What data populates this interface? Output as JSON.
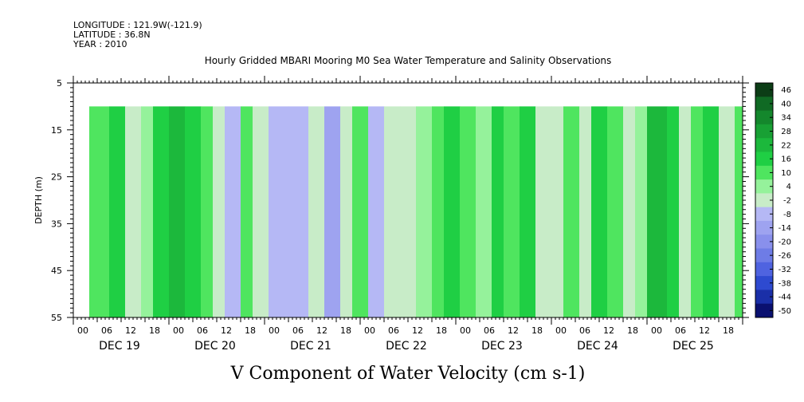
{
  "header": {
    "longitude": "LONGITUDE : 121.9W(-121.9)",
    "latitude": "LATITUDE : 36.8N",
    "year": "YEAR : 2010"
  },
  "chart_data": {
    "type": "heatmap",
    "title": "Hourly Gridded MBARI Mooring M0 Sea Water Temperature and Salinity Observations",
    "xlabel": "V Component of Water Velocity (cm s-1)",
    "ylabel": "DEPTH (m)",
    "ylim": [
      55,
      5
    ],
    "y_ticks": [
      "5",
      "15",
      "25",
      "35",
      "45",
      "55"
    ],
    "x_hour_ticks": [
      "00",
      "06",
      "12",
      "18",
      "00",
      "06",
      "12",
      "18",
      "00",
      "06",
      "12",
      "18",
      "00",
      "06",
      "12",
      "18",
      "00",
      "06",
      "12",
      "18",
      "00",
      "06",
      "12",
      "18",
      "00",
      "06",
      "12",
      "18"
    ],
    "x_day_labels": [
      "DEC 19",
      "DEC 20",
      "DEC 21",
      "DEC 22",
      "DEC 23",
      "DEC 24",
      "DEC 25"
    ],
    "data_start": "DEC 19 04:00",
    "data_end": "DEC 25 23:00",
    "data_top_depth": 10,
    "colorbar_levels": [
      "46",
      "40",
      "34",
      "28",
      "22",
      "16",
      "10",
      "4",
      "-2",
      "-8",
      "-14",
      "-20",
      "-26",
      "-32",
      "-38",
      "-44",
      "-50"
    ],
    "colorbar_colors": [
      "#0c3d16",
      "#106a24",
      "#14872c",
      "#18a034",
      "#1cb83c",
      "#1fcf44",
      "#4fe55f",
      "#95f29b",
      "#c8ecc8",
      "#b5b8f5",
      "#9ea3f0",
      "#8990ec",
      "#6e7ce6",
      "#4f63e0",
      "#2e4ad0",
      "#1a2fa8",
      "#0a1070"
    ],
    "columns": [
      {
        "time": "DEC 19 04",
        "v": 8
      },
      {
        "time": "DEC 19 09",
        "v": 14
      },
      {
        "time": "DEC 19 13",
        "v": -6
      },
      {
        "time": "DEC 19 17",
        "v": 2
      },
      {
        "time": "DEC 19 20",
        "v": 12
      },
      {
        "time": "DEC 20 00",
        "v": 18
      },
      {
        "time": "DEC 20 04",
        "v": 10
      },
      {
        "time": "DEC 20 08",
        "v": 4
      },
      {
        "time": "DEC 20 11",
        "v": -4
      },
      {
        "time": "DEC 20 14",
        "v": -10
      },
      {
        "time": "DEC 20 18",
        "v": 6
      },
      {
        "time": "DEC 20 21",
        "v": -6
      },
      {
        "time": "DEC 21 01",
        "v": -14
      },
      {
        "time": "DEC 21 06",
        "v": -12
      },
      {
        "time": "DEC 21 11",
        "v": -8
      },
      {
        "time": "DEC 21 15",
        "v": -18
      },
      {
        "time": "DEC 21 19",
        "v": -6
      },
      {
        "time": "DEC 21 22",
        "v": 8
      },
      {
        "time": "DEC 22 02",
        "v": -12
      },
      {
        "time": "DEC 22 06",
        "v": -8
      },
      {
        "time": "DEC 22 10",
        "v": -4
      },
      {
        "time": "DEC 22 14",
        "v": -2
      },
      {
        "time": "DEC 22 18",
        "v": 4
      },
      {
        "time": "DEC 22 21",
        "v": 12
      },
      {
        "time": "DEC 23 01",
        "v": 6
      },
      {
        "time": "DEC 23 05",
        "v": 2
      },
      {
        "time": "DEC 23 09",
        "v": 12
      },
      {
        "time": "DEC 23 12",
        "v": 4
      },
      {
        "time": "DEC 23 16",
        "v": 10
      },
      {
        "time": "DEC 23 20",
        "v": -4
      },
      {
        "time": "DEC 24 00",
        "v": -8
      },
      {
        "time": "DEC 24 03",
        "v": 6
      },
      {
        "time": "DEC 24 07",
        "v": -4
      },
      {
        "time": "DEC 24 10",
        "v": 14
      },
      {
        "time": "DEC 24 14",
        "v": 4
      },
      {
        "time": "DEC 24 18",
        "v": -6
      },
      {
        "time": "DEC 24 21",
        "v": -2
      },
      {
        "time": "DEC 25 00",
        "v": 16
      },
      {
        "time": "DEC 25 05",
        "v": 12
      },
      {
        "time": "DEC 25 08",
        "v": -4
      },
      {
        "time": "DEC 25 11",
        "v": 6
      },
      {
        "time": "DEC 25 14",
        "v": 14
      },
      {
        "time": "DEC 25 18",
        "v": -4
      },
      {
        "time": "DEC 25 22",
        "v": 8
      }
    ]
  }
}
